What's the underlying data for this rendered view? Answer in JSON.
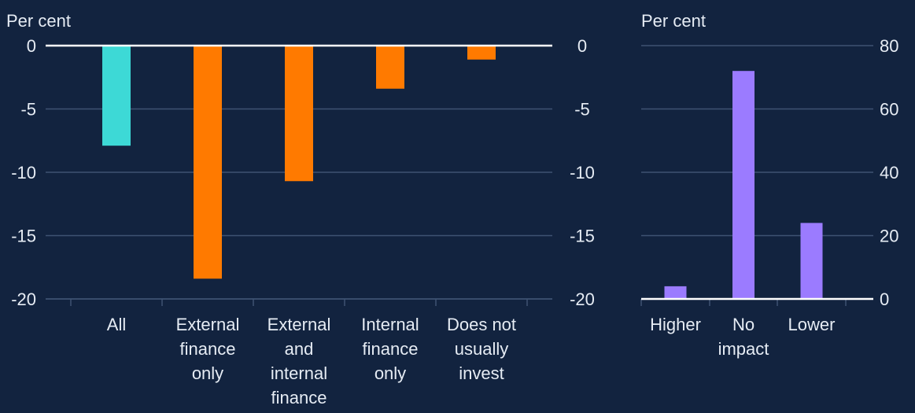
{
  "colors": {
    "background": "#12233f",
    "grid": "#3e5372",
    "axis": "#ffffff",
    "text": "#e6ecf4",
    "all": "#3dd9d6",
    "finance_groups": "#ff7a00",
    "impact": "#9b7bff"
  },
  "chart_data": [
    {
      "type": "bar",
      "title": "",
      "ylabel": "Per cent",
      "xlabel": "",
      "ylim": [
        -20,
        0
      ],
      "yticks": [
        0,
        -5,
        -10,
        -15,
        -20
      ],
      "ytick_labels": [
        "0",
        "-5",
        "-10",
        "-15",
        "-20"
      ],
      "right_axis_duplicate": true,
      "grid": true,
      "categories": [
        "All",
        "External finance only",
        "External and internal finance",
        "Internal finance only",
        "Does not usually invest"
      ],
      "category_lines": [
        [
          "All"
        ],
        [
          "External",
          "finance",
          "only"
        ],
        [
          "External",
          "and",
          "internal",
          "finance"
        ],
        [
          "Internal",
          "finance",
          "only"
        ],
        [
          "Does not",
          "usually",
          "invest"
        ]
      ],
      "values": [
        -7.9,
        -18.4,
        -10.7,
        -3.4,
        -1.1
      ],
      "bar_colors": [
        "#3dd9d6",
        "#ff7a00",
        "#ff7a00",
        "#ff7a00",
        "#ff7a00"
      ]
    },
    {
      "type": "bar",
      "title": "",
      "ylabel": "Per cent",
      "xlabel": "",
      "ylim": [
        0,
        80
      ],
      "yticks": [
        80,
        60,
        40,
        20,
        0
      ],
      "ytick_labels": [
        "80",
        "60",
        "40",
        "20",
        "0"
      ],
      "axis_side": "right",
      "grid": true,
      "categories": [
        "Higher",
        "No impact",
        "Lower"
      ],
      "category_lines": [
        [
          "Higher"
        ],
        [
          "No",
          "impact"
        ],
        [
          "Lower"
        ]
      ],
      "values": [
        4,
        72,
        24
      ],
      "bar_colors": [
        "#9b7bff",
        "#9b7bff",
        "#9b7bff"
      ]
    }
  ]
}
